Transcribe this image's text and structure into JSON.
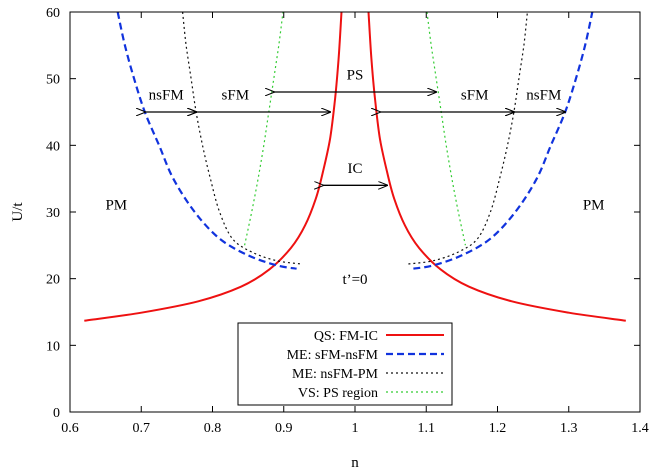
{
  "chart_data": {
    "type": "line",
    "xlabel": "n",
    "ylabel": "U/t",
    "xlim": [
      0.6,
      1.4
    ],
    "ylim": [
      0,
      60
    ],
    "x_ticks": [
      "0.6",
      "0.7",
      "0.8",
      "0.9",
      "1",
      "1.1",
      "1.2",
      "1.3",
      "1.4"
    ],
    "y_ticks": [
      "0",
      "10",
      "20",
      "30",
      "40",
      "50",
      "60"
    ],
    "annotation": "t’=0",
    "legend_position": "bottom-center",
    "series": [
      {
        "name": "QS: FM-IC",
        "color": "#ee1111",
        "dash": "solid",
        "segments": [
          [
            [
              0.62,
              13.7
            ],
            [
              0.7,
              14.9
            ],
            [
              0.78,
              16.6
            ],
            [
              0.84,
              18.8
            ],
            [
              0.88,
              21.4
            ],
            [
              0.91,
              24.6
            ],
            [
              0.93,
              28.0
            ],
            [
              0.945,
              32.0
            ],
            [
              0.955,
              36.0
            ],
            [
              0.965,
              41.0
            ],
            [
              0.972,
              47.0
            ],
            [
              0.977,
              53.0
            ],
            [
              0.981,
              60.0
            ]
          ],
          [
            [
              1.019,
              60.0
            ],
            [
              1.023,
              53.0
            ],
            [
              1.028,
              47.0
            ],
            [
              1.035,
              41.0
            ],
            [
              1.045,
              36.0
            ],
            [
              1.055,
              32.0
            ],
            [
              1.07,
              28.0
            ],
            [
              1.09,
              24.6
            ],
            [
              1.12,
              21.4
            ],
            [
              1.16,
              18.8
            ],
            [
              1.22,
              16.6
            ],
            [
              1.3,
              14.9
            ],
            [
              1.38,
              13.7
            ]
          ]
        ]
      },
      {
        "name": "ME: sFM-nsFM",
        "color": "#1133dd",
        "dash": "dashed",
        "segments": [
          [
            [
              0.667,
              60.0
            ],
            [
              0.677,
              55.0
            ],
            [
              0.69,
              50.0
            ],
            [
              0.705,
              45.0
            ],
            [
              0.725,
              40.0
            ],
            [
              0.745,
              35.0
            ],
            [
              0.775,
              30.0
            ],
            [
              0.81,
              26.0
            ],
            [
              0.85,
              23.5
            ],
            [
              0.89,
              22.0
            ],
            [
              0.918,
              21.5
            ]
          ],
          [
            [
              1.082,
              21.5
            ],
            [
              1.11,
              22.0
            ],
            [
              1.15,
              23.5
            ],
            [
              1.19,
              26.0
            ],
            [
              1.225,
              30.0
            ],
            [
              1.255,
              35.0
            ],
            [
              1.275,
              40.0
            ],
            [
              1.295,
              45.0
            ],
            [
              1.31,
              50.0
            ],
            [
              1.323,
              55.0
            ],
            [
              1.333,
              60.0
            ]
          ]
        ]
      },
      {
        "name": "ME: nsFM-PM",
        "color": "#111111",
        "dash": "dotted",
        "segments": [
          [
            [
              0.758,
              60.0
            ],
            [
              0.763,
              55.0
            ],
            [
              0.77,
              50.0
            ],
            [
              0.777,
              45.0
            ],
            [
              0.786,
              40.0
            ],
            [
              0.797,
              35.0
            ],
            [
              0.81,
              30.0
            ],
            [
              0.828,
              26.0
            ],
            [
              0.855,
              24.0
            ],
            [
              0.89,
              22.7
            ],
            [
              0.925,
              22.2
            ]
          ],
          [
            [
              1.075,
              22.2
            ],
            [
              1.11,
              22.7
            ],
            [
              1.145,
              24.0
            ],
            [
              1.172,
              26.0
            ],
            [
              1.19,
              30.0
            ],
            [
              1.203,
              35.0
            ],
            [
              1.214,
              40.0
            ],
            [
              1.223,
              45.0
            ],
            [
              1.23,
              50.0
            ],
            [
              1.237,
              55.0
            ],
            [
              1.242,
              60.0
            ]
          ]
        ]
      },
      {
        "name": "VS: PS region",
        "color": "#33cc33",
        "dash": "dotted",
        "segments": [
          [
            [
              0.845,
              25.0
            ],
            [
              0.855,
              30.0
            ],
            [
              0.864,
              35.0
            ],
            [
              0.872,
              40.0
            ],
            [
              0.879,
              45.0
            ],
            [
              0.886,
              50.0
            ],
            [
              0.893,
              55.0
            ],
            [
              0.899,
              60.0
            ]
          ],
          [
            [
              1.101,
              60.0
            ],
            [
              1.107,
              55.0
            ],
            [
              1.114,
              50.0
            ],
            [
              1.121,
              45.0
            ],
            [
              1.128,
              40.0
            ],
            [
              1.136,
              35.0
            ],
            [
              1.145,
              30.0
            ],
            [
              1.155,
              25.0
            ]
          ]
        ]
      }
    ],
    "region_labels": [
      {
        "text": "PM",
        "x": 0.665,
        "y": 30.5
      },
      {
        "text": "PM",
        "x": 1.335,
        "y": 30.5
      },
      {
        "text": "nsFM",
        "x": 0.735,
        "y": 47.0
      },
      {
        "text": "sFM",
        "x": 0.832,
        "y": 47.0
      },
      {
        "text": "PS",
        "x": 1.0,
        "y": 50.0
      },
      {
        "text": "sFM",
        "x": 1.168,
        "y": 47.0
      },
      {
        "text": "nsFM",
        "x": 1.265,
        "y": 47.0
      },
      {
        "text": "IC",
        "x": 1.0,
        "y": 36.0
      }
    ],
    "arrows": [
      {
        "from": [
          0.705,
          45.0
        ],
        "to": [
          0.777,
          45.0
        ]
      },
      {
        "from": [
          0.777,
          45.0
        ],
        "to": [
          0.965,
          45.0
        ]
      },
      {
        "from": [
          1.035,
          45.0
        ],
        "to": [
          1.223,
          45.0
        ]
      },
      {
        "from": [
          1.223,
          45.0
        ],
        "to": [
          1.295,
          45.0
        ]
      },
      {
        "from": [
          0.886,
          48.0
        ],
        "to": [
          1.114,
          48.0
        ]
      },
      {
        "from": [
          0.955,
          34.0
        ],
        "to": [
          1.045,
          34.0
        ]
      }
    ]
  }
}
